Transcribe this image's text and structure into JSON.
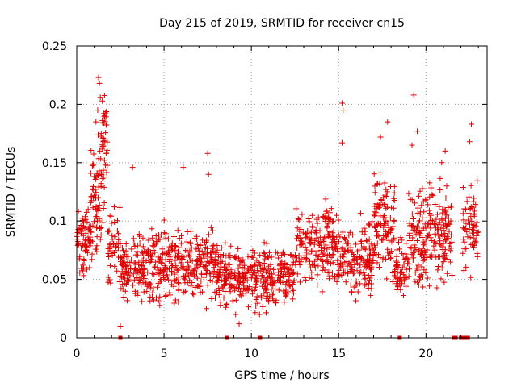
{
  "chart_data": {
    "type": "scatter",
    "title": "Day 215 of 2019, SRMTID for receiver cn15",
    "xlabel": "GPS time / hours",
    "ylabel": "SRMTID / TECUs",
    "xlim": [
      0,
      23.5
    ],
    "ylim": [
      0,
      0.25
    ],
    "xticks": [
      0,
      5,
      10,
      15,
      20
    ],
    "yticks": [
      0,
      0.05,
      0.1,
      0.15,
      0.2,
      0.25
    ],
    "ytick_labels": [
      "0",
      "0.05",
      "0.1",
      "0.15",
      "0.2",
      "0.25"
    ],
    "xtick_labels": [
      "0",
      "5",
      "10",
      "15",
      "20"
    ],
    "grid": true,
    "marker": "+",
    "color": "#e00000",
    "zero_points": [
      2.5,
      8.6,
      10.5,
      18.5,
      21.6,
      21.7,
      22.0,
      22.2,
      22.3,
      22.4
    ],
    "series": [
      {
        "name": "SRMTID",
        "segments": [
          {
            "x_start": 0.0,
            "x_end": 0.8,
            "y_mean": 0.085,
            "y_spread": 0.03,
            "count": 70
          },
          {
            "x_start": 0.8,
            "x_end": 1.4,
            "y_mean": 0.12,
            "y_spread": 0.04,
            "count": 70
          },
          {
            "x_start": 1.4,
            "x_end": 1.75,
            "y_mean": 0.16,
            "y_spread": 0.05,
            "count": 45
          },
          {
            "x_start": 1.75,
            "x_end": 2.5,
            "y_mean": 0.08,
            "y_spread": 0.03,
            "count": 45
          },
          {
            "x_start": 2.5,
            "x_end": 5.0,
            "y_mean": 0.06,
            "y_spread": 0.025,
            "count": 200
          },
          {
            "x_start": 5.0,
            "x_end": 8.0,
            "y_mean": 0.063,
            "y_spread": 0.028,
            "count": 230
          },
          {
            "x_start": 8.0,
            "x_end": 10.0,
            "y_mean": 0.052,
            "y_spread": 0.022,
            "count": 160
          },
          {
            "x_start": 10.0,
            "x_end": 12.5,
            "y_mean": 0.052,
            "y_spread": 0.022,
            "count": 200
          },
          {
            "x_start": 12.5,
            "x_end": 15.0,
            "y_mean": 0.078,
            "y_spread": 0.03,
            "count": 200
          },
          {
            "x_start": 15.0,
            "x_end": 17.0,
            "y_mean": 0.068,
            "y_spread": 0.03,
            "count": 160
          },
          {
            "x_start": 17.0,
            "x_end": 18.2,
            "y_mean": 0.095,
            "y_spread": 0.035,
            "count": 110
          },
          {
            "x_start": 18.2,
            "x_end": 19.0,
            "y_mean": 0.06,
            "y_spread": 0.02,
            "count": 60
          },
          {
            "x_start": 19.0,
            "x_end": 20.2,
            "y_mean": 0.085,
            "y_spread": 0.035,
            "count": 110
          },
          {
            "x_start": 20.2,
            "x_end": 21.5,
            "y_mean": 0.09,
            "y_spread": 0.035,
            "count": 110
          },
          {
            "x_start": 22.1,
            "x_end": 23.0,
            "y_mean": 0.095,
            "y_spread": 0.035,
            "count": 65
          }
        ],
        "highlights": [
          {
            "x": 1.25,
            "y": 0.223
          },
          {
            "x": 1.3,
            "y": 0.218
          },
          {
            "x": 1.35,
            "y": 0.206
          },
          {
            "x": 1.2,
            "y": 0.195
          },
          {
            "x": 1.1,
            "y": 0.185
          },
          {
            "x": 1.4,
            "y": 0.175
          },
          {
            "x": 2.5,
            "y": 0.01
          },
          {
            "x": 7.5,
            "y": 0.158
          },
          {
            "x": 7.55,
            "y": 0.14
          },
          {
            "x": 6.1,
            "y": 0.146
          },
          {
            "x": 3.2,
            "y": 0.146
          },
          {
            "x": 15.2,
            "y": 0.201
          },
          {
            "x": 15.25,
            "y": 0.195
          },
          {
            "x": 15.2,
            "y": 0.167
          },
          {
            "x": 17.8,
            "y": 0.185
          },
          {
            "x": 17.4,
            "y": 0.172
          },
          {
            "x": 19.3,
            "y": 0.208
          },
          {
            "x": 19.5,
            "y": 0.177
          },
          {
            "x": 19.2,
            "y": 0.165
          },
          {
            "x": 22.6,
            "y": 0.183
          },
          {
            "x": 22.5,
            "y": 0.168
          },
          {
            "x": 21.1,
            "y": 0.16
          },
          {
            "x": 20.9,
            "y": 0.15
          },
          {
            "x": 9.3,
            "y": 0.012
          },
          {
            "x": 9.1,
            "y": 0.02
          }
        ]
      }
    ]
  }
}
